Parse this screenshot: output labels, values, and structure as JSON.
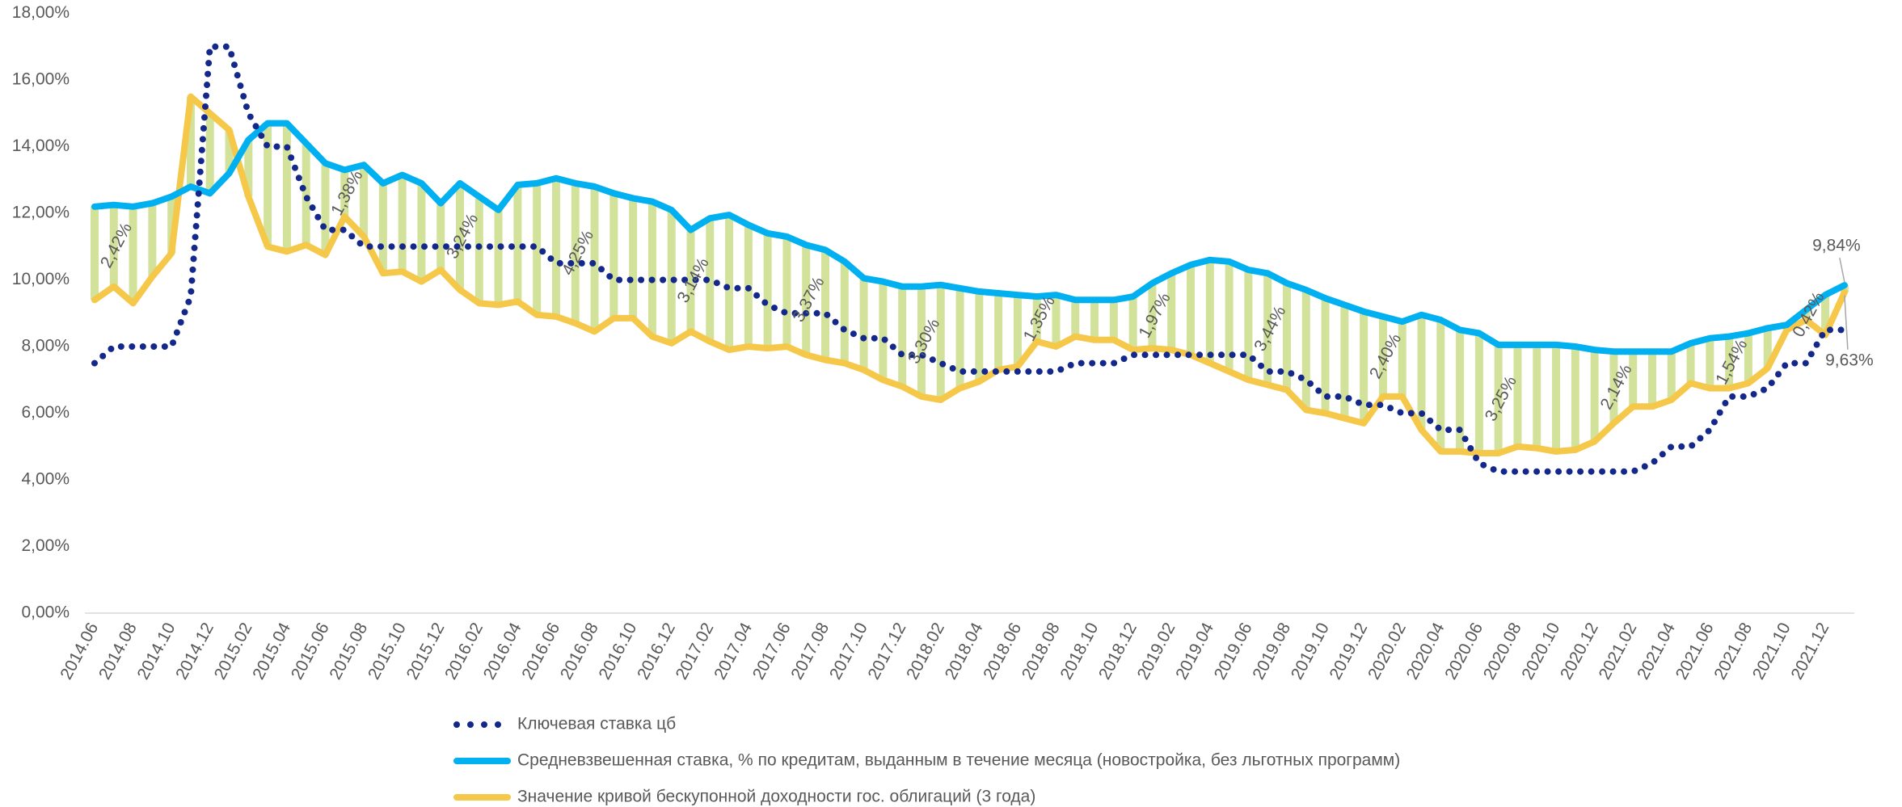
{
  "chart_data": {
    "type": "line",
    "categories": [
      "2014.06",
      null,
      "2014.08",
      null,
      "2014.10",
      null,
      "2014.12",
      null,
      "2015.02",
      null,
      "2015.04",
      null,
      "2015.06",
      null,
      "2015.08",
      null,
      "2015.10",
      null,
      "2015.12",
      null,
      "2016.02",
      null,
      "2016.04",
      null,
      "2016.06",
      null,
      "2016.08",
      null,
      "2016.10",
      null,
      "2016.12",
      null,
      "2017.02",
      null,
      "2017.04",
      null,
      "2017.06",
      null,
      "2017.08",
      null,
      "2017.10",
      null,
      "2017.12",
      null,
      "2018.02",
      null,
      "2018.04",
      null,
      "2018.06",
      null,
      "2018.08",
      null,
      "2018.10",
      null,
      "2018.12",
      null,
      "2019.02",
      null,
      "2019.04",
      null,
      "2019.06",
      null,
      "2019.08",
      null,
      "2019.10",
      null,
      "2019.12",
      null,
      "2020.02",
      null,
      "2020.04",
      null,
      "2020.06",
      null,
      "2020.08",
      null,
      "2020.10",
      null,
      "2020.12",
      null,
      "2021.02",
      null,
      "2021.04",
      null,
      "2021.06",
      null,
      "2021.08",
      null,
      "2021.10",
      null,
      "2021.12",
      null
    ],
    "series": [
      {
        "name": "Ключевая ставка цб",
        "color": "#13288a",
        "dash": "dotted",
        "values": [
          7.5,
          8,
          8,
          8,
          8,
          9.5,
          17,
          17,
          15,
          14,
          14,
          12.5,
          11.5,
          11.5,
          11,
          11,
          11,
          11,
          11,
          11,
          11,
          11,
          11,
          11,
          10.5,
          10.5,
          10.5,
          10,
          10,
          10,
          10,
          10,
          10,
          9.75,
          9.75,
          9.25,
          9,
          9,
          9,
          8.5,
          8.25,
          8.25,
          7.75,
          7.75,
          7.5,
          7.25,
          7.25,
          7.25,
          7.25,
          7.25,
          7.25,
          7.5,
          7.5,
          7.5,
          7.75,
          7.75,
          7.75,
          7.75,
          7.75,
          7.75,
          7.75,
          7.25,
          7.25,
          7,
          6.5,
          6.5,
          6.25,
          6.25,
          6,
          6,
          5.5,
          5.5,
          4.5,
          4.25,
          4.25,
          4.25,
          4.25,
          4.25,
          4.25,
          4.25,
          4.25,
          4.5,
          5,
          5,
          5.5,
          6.5,
          6.5,
          6.75,
          7.5,
          7.5,
          8.5,
          8.5
        ]
      },
      {
        "name": "Средневзвешенная ставка, % по кредитам, выданным в течение месяца (новостройка, без льготных программ)",
        "color": "#00b0f0",
        "dash": "solid",
        "values": [
          12.2,
          12.25,
          12.2,
          12.3,
          12.5,
          12.8,
          12.6,
          13.2,
          14.2,
          14.7,
          14.7,
          14.1,
          13.5,
          13.3,
          13.45,
          12.9,
          13.15,
          12.9,
          12.3,
          12.9,
          12.5,
          12.1,
          12.85,
          12.9,
          13.05,
          12.9,
          12.8,
          12.6,
          12.45,
          12.35,
          12.1,
          11.5,
          11.85,
          11.95,
          11.65,
          11.4,
          11.3,
          11.05,
          10.9,
          10.55,
          10.05,
          9.95,
          9.8,
          9.8,
          9.85,
          9.75,
          9.65,
          9.6,
          9.55,
          9.5,
          9.55,
          9.4,
          9.4,
          9.4,
          9.5,
          9.9,
          10.2,
          10.45,
          10.6,
          10.55,
          10.3,
          10.2,
          9.9,
          9.7,
          9.45,
          9.25,
          9.05,
          8.9,
          8.75,
          8.95,
          8.8,
          8.5,
          8.4,
          8.05,
          8.05,
          8.05,
          8.05,
          8,
          7.9,
          7.85,
          7.85,
          7.85,
          7.85,
          8.1,
          8.25,
          8.3,
          8.4,
          8.55,
          8.65,
          9.1,
          9.55,
          9.84
        ],
        "value_labels": [
          null,
          null,
          null,
          null,
          null,
          null,
          null,
          null,
          null,
          null,
          null,
          null,
          null,
          null,
          null,
          null,
          null,
          null,
          null,
          null,
          null,
          null,
          null,
          null,
          null,
          null,
          null,
          null,
          null,
          null,
          null,
          null,
          null,
          null,
          null,
          null,
          null,
          null,
          null,
          null,
          null,
          null,
          null,
          null,
          null,
          null,
          null,
          null,
          null,
          null,
          null,
          null,
          null,
          null,
          null,
          null,
          null,
          null,
          null,
          null,
          null,
          null,
          null,
          null,
          null,
          null,
          null,
          null,
          null,
          null,
          null,
          null,
          null,
          null,
          null,
          null,
          null,
          null,
          null,
          null,
          null,
          null,
          null,
          null,
          null,
          null,
          null,
          null,
          null,
          null,
          null,
          "9,84%"
        ]
      },
      {
        "name": "Значение кривой бескупонной доходности гос. облигаций (3 года)",
        "color": "#f5c84a",
        "dash": "solid",
        "values": [
          9.4,
          9.8,
          9.3,
          10.1,
          10.8,
          15.5,
          15,
          14.5,
          12.5,
          11,
          10.85,
          11.05,
          10.75,
          11.9,
          11.3,
          10.2,
          10.25,
          9.95,
          10.3,
          9.7,
          9.3,
          9.25,
          9.35,
          8.95,
          8.9,
          8.7,
          8.45,
          8.85,
          8.85,
          8.3,
          8.1,
          8.45,
          8.15,
          7.9,
          8,
          7.95,
          8,
          7.75,
          7.6,
          7.5,
          7.3,
          7,
          6.8,
          6.5,
          6.4,
          6.75,
          6.95,
          7.3,
          7.4,
          8.15,
          8,
          8.3,
          8.2,
          8.2,
          7.9,
          7.95,
          7.9,
          7.75,
          7.5,
          7.25,
          7,
          6.85,
          6.7,
          6.1,
          6,
          5.85,
          5.7,
          6.5,
          6.5,
          5.5,
          4.85,
          4.85,
          4.8,
          4.8,
          5,
          4.95,
          4.85,
          4.9,
          5.15,
          5.7,
          6.2,
          6.2,
          6.4,
          6.9,
          6.75,
          6.75,
          6.9,
          7.35,
          8.5,
          8.8,
          8.35,
          9.63
        ],
        "value_labels": [
          null,
          null,
          null,
          null,
          null,
          null,
          null,
          null,
          null,
          null,
          null,
          null,
          null,
          null,
          null,
          null,
          null,
          null,
          null,
          null,
          null,
          null,
          null,
          null,
          null,
          null,
          null,
          null,
          null,
          null,
          null,
          null,
          null,
          null,
          null,
          null,
          null,
          null,
          null,
          null,
          null,
          null,
          null,
          null,
          null,
          null,
          null,
          null,
          null,
          null,
          null,
          null,
          null,
          null,
          null,
          null,
          null,
          null,
          null,
          null,
          null,
          null,
          null,
          null,
          null,
          null,
          null,
          null,
          null,
          null,
          null,
          null,
          null,
          null,
          null,
          null,
          null,
          null,
          null,
          null,
          null,
          null,
          null,
          null,
          null,
          null,
          null,
          null,
          null,
          null,
          null,
          "9,63%"
        ]
      }
    ],
    "spread_color": "#d3e29a",
    "annotations": [
      "2,42%",
      "1,38%",
      "3,24%",
      "4,25%",
      "3,14%",
      "3,37%",
      "3,30%",
      "1,35%",
      "1,97%",
      "3,44%",
      "2,40%",
      "3,25%",
      "2,14%",
      "1,54%",
      "0,42%"
    ],
    "ylim": [
      0,
      18
    ],
    "yticks": [
      {
        "value": 0,
        "label": "0,00%"
      },
      {
        "value": 2,
        "label": "2,00%"
      },
      {
        "value": 4,
        "label": "4,00%"
      },
      {
        "value": 6,
        "label": "6,00%"
      },
      {
        "value": 8,
        "label": "8,00%"
      },
      {
        "value": 10,
        "label": "10,00%"
      },
      {
        "value": 12,
        "label": "12,00%"
      },
      {
        "value": 14,
        "label": "14,00%"
      },
      {
        "value": 16,
        "label": "16,00%"
      },
      {
        "value": 18,
        "label": "18,00%"
      }
    ],
    "grid": false,
    "legend": "bottom"
  }
}
